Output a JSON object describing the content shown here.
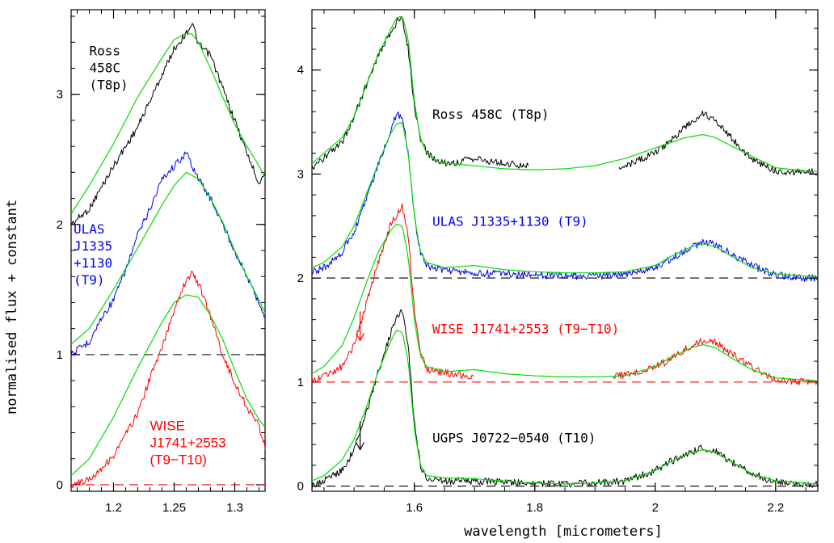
{
  "chart_data": [
    {
      "type": "line",
      "panel": "left",
      "ylabel": "normalised flux + constant",
      "xlim": [
        1.165,
        1.325
      ],
      "ylim": [
        -0.05,
        3.65
      ],
      "x_ticks": [
        1.2,
        1.25,
        1.3
      ],
      "x_tick_labels": [
        "1.2",
        "1.25",
        "1.3"
      ],
      "y_ticks": [
        0,
        1,
        2,
        3
      ],
      "y_tick_labels": [
        "0",
        "1",
        "2",
        "3"
      ],
      "baselines": [
        {
          "y": 1,
          "color": "#000000",
          "x_from": 1.165
        },
        {
          "y": 0,
          "color": "#ff0000",
          "x_from": 1.165
        }
      ],
      "annotations": [
        {
          "lines": [
            "Ross",
            "458C",
            "(T8p)"
          ],
          "x": 1.18,
          "y": 3.3,
          "color": "#000000",
          "style": "mono"
        },
        {
          "lines": [
            "ULAS",
            "J1335",
            "+1130",
            "(T9)"
          ],
          "x": 1.167,
          "y": 1.93,
          "color": "#0000ee",
          "style": "mono"
        },
        {
          "lines": [
            "WISE",
            "J1741+2553",
            "(T9−T10)"
          ],
          "x": 1.23,
          "y": 0.42,
          "color": "#ff0000",
          "style": "sans"
        }
      ],
      "series": [
        {
          "color": "#000000",
          "role": "spectrum",
          "x": [
            1.165,
            1.18,
            1.2,
            1.22,
            1.24,
            1.25,
            1.26,
            1.265,
            1.27,
            1.28,
            1.29,
            1.3,
            1.31,
            1.32,
            1.325
          ],
          "y": [
            2.0,
            2.12,
            2.45,
            2.75,
            3.15,
            3.35,
            3.47,
            3.55,
            3.38,
            3.3,
            3.05,
            2.8,
            2.55,
            2.32,
            2.4
          ]
        },
        {
          "color": "#00dd00",
          "role": "model",
          "x": [
            1.165,
            1.18,
            1.2,
            1.22,
            1.24,
            1.25,
            1.26,
            1.265,
            1.27,
            1.28,
            1.29,
            1.3,
            1.31,
            1.32,
            1.325
          ],
          "y": [
            2.08,
            2.3,
            2.62,
            2.98,
            3.28,
            3.42,
            3.47,
            3.46,
            3.4,
            3.2,
            2.98,
            2.77,
            2.6,
            2.45,
            2.36
          ]
        },
        {
          "color": "#0000ee",
          "role": "spectrum",
          "x": [
            1.165,
            1.18,
            1.19,
            1.2,
            1.21,
            1.22,
            1.23,
            1.24,
            1.25,
            1.26,
            1.27,
            1.28,
            1.29,
            1.3,
            1.31,
            1.32,
            1.325
          ],
          "y": [
            1.0,
            1.1,
            1.28,
            1.42,
            1.65,
            1.92,
            2.12,
            2.35,
            2.45,
            2.55,
            2.35,
            2.2,
            2.0,
            1.8,
            1.6,
            1.4,
            1.28
          ]
        },
        {
          "color": "#00dd00",
          "role": "model",
          "x": [
            1.165,
            1.18,
            1.2,
            1.22,
            1.24,
            1.25,
            1.26,
            1.27,
            1.28,
            1.29,
            1.3,
            1.31,
            1.32,
            1.325
          ],
          "y": [
            1.08,
            1.2,
            1.5,
            1.82,
            2.15,
            2.3,
            2.4,
            2.35,
            2.2,
            2.02,
            1.8,
            1.6,
            1.42,
            1.32
          ]
        },
        {
          "color": "#ff0000",
          "role": "spectrum",
          "x": [
            1.165,
            1.18,
            1.2,
            1.22,
            1.23,
            1.24,
            1.25,
            1.26,
            1.265,
            1.27,
            1.28,
            1.29,
            1.3,
            1.31,
            1.32,
            1.325
          ],
          "y": [
            0.0,
            0.04,
            0.22,
            0.55,
            0.82,
            1.05,
            1.35,
            1.58,
            1.62,
            1.55,
            1.3,
            1.0,
            0.78,
            0.6,
            0.45,
            0.3
          ]
        },
        {
          "color": "#00dd00",
          "role": "model",
          "x": [
            1.165,
            1.18,
            1.2,
            1.22,
            1.24,
            1.25,
            1.26,
            1.27,
            1.28,
            1.29,
            1.3,
            1.31,
            1.32,
            1.325
          ],
          "y": [
            0.07,
            0.2,
            0.52,
            0.9,
            1.25,
            1.4,
            1.46,
            1.44,
            1.3,
            1.12,
            0.88,
            0.66,
            0.5,
            0.44
          ]
        }
      ]
    },
    {
      "type": "line",
      "panel": "right",
      "xlabel": "wavelength [micrometers]",
      "xlim": [
        1.43,
        2.27
      ],
      "ylim": [
        -0.05,
        4.58
      ],
      "x_ticks": [
        1.6,
        1.8,
        2,
        2.2
      ],
      "x_tick_labels": [
        "1.6",
        "1.8",
        "2",
        "2.2"
      ],
      "y_ticks": [
        0,
        1,
        2,
        3,
        4
      ],
      "y_tick_labels": [
        "0",
        "1",
        "2",
        "3",
        "4"
      ],
      "baselines": [
        {
          "y": 2,
          "color": "#000000",
          "x_from": 1.43
        },
        {
          "y": 1,
          "color": "#ff0000",
          "x_from": 1.43
        },
        {
          "y": 0,
          "color": "#000000",
          "x_from": 1.43
        }
      ],
      "arrows": [
        {
          "x": 1.51,
          "y_top": 1.68,
          "y_bottom": 1.4,
          "color": "#ff0000"
        },
        {
          "x": 1.51,
          "y_top": 0.62,
          "y_bottom": 0.35,
          "color": "#000000"
        }
      ],
      "annotations": [
        {
          "lines": [
            "Ross 458C (T8p)"
          ],
          "x": 1.63,
          "y": 3.53,
          "color": "#000000",
          "style": "mono"
        },
        {
          "lines": [
            "ULAS J1335+1130 (T9)"
          ],
          "x": 1.63,
          "y": 2.5,
          "color": "#0000ee",
          "style": "mono"
        },
        {
          "lines": [
            "WISE J1741+2553 (T9−T10)"
          ],
          "x": 1.63,
          "y": 1.47,
          "color": "#ff0000",
          "style": "mono"
        },
        {
          "lines": [
            "UGPS J0722−0540 (T10)"
          ],
          "x": 1.63,
          "y": 0.42,
          "color": "#000000",
          "style": "mono"
        }
      ],
      "series": [
        {
          "color": "#000000",
          "role": "spectrum",
          "segments": [
            {
              "x": [
                1.43,
                1.45,
                1.48,
                1.5,
                1.52,
                1.54,
                1.56,
                1.57,
                1.58,
                1.59,
                1.6,
                1.61,
                1.62,
                1.64,
                1.66,
                1.7,
                1.75,
                1.79
              ],
              "y": [
                3.05,
                3.15,
                3.3,
                3.55,
                3.85,
                4.15,
                4.35,
                4.45,
                4.5,
                4.2,
                3.65,
                3.35,
                3.2,
                3.12,
                3.1,
                3.15,
                3.1,
                3.08
              ]
            },
            {
              "x": [
                1.94,
                1.96,
                1.98,
                2.0,
                2.02,
                2.04,
                2.06,
                2.08,
                2.1,
                2.12,
                2.14,
                2.16,
                2.18,
                2.2,
                2.22,
                2.25,
                2.27
              ],
              "y": [
                3.05,
                3.1,
                3.15,
                3.2,
                3.3,
                3.4,
                3.5,
                3.58,
                3.52,
                3.4,
                3.25,
                3.15,
                3.08,
                3.03,
                3.02,
                3.02,
                3.02
              ]
            }
          ]
        },
        {
          "color": "#00dd00",
          "role": "model",
          "x": [
            1.43,
            1.45,
            1.48,
            1.5,
            1.52,
            1.54,
            1.56,
            1.57,
            1.58,
            1.59,
            1.6,
            1.61,
            1.62,
            1.64,
            1.66,
            1.7,
            1.75,
            1.8,
            1.85,
            1.9,
            1.95,
            2.0,
            2.05,
            2.08,
            2.1,
            2.15,
            2.2,
            2.25,
            2.27
          ],
          "y": [
            3.1,
            3.2,
            3.35,
            3.55,
            3.85,
            4.15,
            4.38,
            4.5,
            4.52,
            4.3,
            3.7,
            3.35,
            3.2,
            3.12,
            3.1,
            3.08,
            3.05,
            3.04,
            3.05,
            3.08,
            3.15,
            3.25,
            3.35,
            3.38,
            3.35,
            3.2,
            3.06,
            3.03,
            3.02
          ]
        },
        {
          "color": "#0000ee",
          "role": "spectrum",
          "x": [
            1.43,
            1.45,
            1.48,
            1.5,
            1.52,
            1.54,
            1.56,
            1.57,
            1.58,
            1.59,
            1.6,
            1.61,
            1.62,
            1.65,
            1.7,
            1.75,
            1.8,
            1.85,
            1.9,
            1.95,
            2.0,
            2.03,
            2.06,
            2.08,
            2.1,
            2.13,
            2.16,
            2.2,
            2.25,
            2.27
          ],
          "y": [
            2.05,
            2.1,
            2.25,
            2.45,
            2.75,
            3.1,
            3.4,
            3.58,
            3.55,
            3.2,
            2.6,
            2.25,
            2.12,
            2.08,
            2.05,
            2.04,
            2.03,
            2.02,
            2.02,
            2.03,
            2.1,
            2.2,
            2.3,
            2.35,
            2.32,
            2.22,
            2.12,
            2.03,
            2.0,
            2.0
          ]
        },
        {
          "color": "#00dd00",
          "role": "model",
          "x": [
            1.43,
            1.45,
            1.48,
            1.5,
            1.52,
            1.54,
            1.56,
            1.57,
            1.58,
            1.59,
            1.6,
            1.61,
            1.62,
            1.65,
            1.7,
            1.75,
            1.8,
            1.85,
            1.9,
            1.95,
            2.0,
            2.03,
            2.06,
            2.08,
            2.1,
            2.13,
            2.16,
            2.2,
            2.25,
            2.27
          ],
          "y": [
            2.1,
            2.15,
            2.3,
            2.5,
            2.8,
            3.1,
            3.38,
            3.48,
            3.5,
            3.2,
            2.6,
            2.25,
            2.15,
            2.1,
            2.12,
            2.08,
            2.06,
            2.05,
            2.05,
            2.06,
            2.12,
            2.22,
            2.3,
            2.33,
            2.3,
            2.2,
            2.1,
            2.04,
            2.02,
            2.01
          ]
        },
        {
          "color": "#ff0000",
          "role": "spectrum",
          "segments": [
            {
              "x": [
                1.43,
                1.45,
                1.48,
                1.5,
                1.52,
                1.54,
                1.56,
                1.57,
                1.58,
                1.59,
                1.6,
                1.61,
                1.62,
                1.64,
                1.66,
                1.7
              ],
              "y": [
                1.02,
                1.05,
                1.15,
                1.35,
                1.75,
                2.15,
                2.5,
                2.6,
                2.7,
                2.4,
                1.7,
                1.3,
                1.12,
                1.1,
                1.08,
                1.05
              ]
            },
            {
              "x": [
                1.93,
                1.96,
                1.98,
                2.0,
                2.02,
                2.04,
                2.06,
                2.08,
                2.1,
                2.12,
                2.14,
                2.16,
                2.18,
                2.2,
                2.22,
                2.25,
                2.27
              ],
              "y": [
                1.05,
                1.08,
                1.12,
                1.15,
                1.2,
                1.28,
                1.35,
                1.4,
                1.38,
                1.3,
                1.22,
                1.15,
                1.08,
                1.03,
                1.01,
                1.0,
                1.0
              ]
            }
          ]
        },
        {
          "color": "#00dd00",
          "role": "model",
          "x": [
            1.43,
            1.45,
            1.48,
            1.5,
            1.52,
            1.54,
            1.56,
            1.57,
            1.58,
            1.59,
            1.6,
            1.61,
            1.62,
            1.65,
            1.7,
            1.75,
            1.8,
            1.85,
            1.9,
            1.95,
            2.0,
            2.03,
            2.06,
            2.08,
            2.1,
            2.13,
            2.16,
            2.2,
            2.25,
            2.27
          ],
          "y": [
            1.08,
            1.15,
            1.35,
            1.62,
            1.95,
            2.25,
            2.45,
            2.52,
            2.5,
            2.2,
            1.6,
            1.25,
            1.15,
            1.1,
            1.12,
            1.08,
            1.06,
            1.05,
            1.05,
            1.06,
            1.15,
            1.25,
            1.33,
            1.36,
            1.33,
            1.22,
            1.12,
            1.04,
            1.02,
            1.01
          ]
        },
        {
          "color": "#000000",
          "role": "spectrum",
          "x": [
            1.43,
            1.45,
            1.48,
            1.5,
            1.52,
            1.54,
            1.56,
            1.57,
            1.58,
            1.59,
            1.6,
            1.61,
            1.62,
            1.65,
            1.7,
            1.75,
            1.8,
            1.85,
            1.9,
            1.95,
            2.0,
            2.03,
            2.06,
            2.08,
            2.1,
            2.13,
            2.16,
            2.2,
            2.25,
            2.27
          ],
          "y": [
            0.0,
            0.05,
            0.15,
            0.35,
            0.7,
            1.1,
            1.45,
            1.62,
            1.7,
            1.35,
            0.6,
            0.2,
            0.08,
            0.05,
            0.05,
            0.04,
            0.03,
            0.02,
            0.03,
            0.05,
            0.15,
            0.25,
            0.33,
            0.37,
            0.33,
            0.22,
            0.12,
            0.04,
            0.02,
            0.02
          ]
        },
        {
          "color": "#00dd00",
          "role": "model",
          "x": [
            1.43,
            1.45,
            1.48,
            1.5,
            1.52,
            1.54,
            1.56,
            1.57,
            1.58,
            1.59,
            1.6,
            1.61,
            1.62,
            1.65,
            1.7,
            1.75,
            1.8,
            1.85,
            1.9,
            1.95,
            2.0,
            2.03,
            2.06,
            2.08,
            2.1,
            2.13,
            2.16,
            2.2,
            2.25,
            2.27
          ],
          "y": [
            0.05,
            0.1,
            0.25,
            0.45,
            0.75,
            1.1,
            1.38,
            1.5,
            1.48,
            1.2,
            0.55,
            0.2,
            0.1,
            0.08,
            0.07,
            0.05,
            0.03,
            0.02,
            0.03,
            0.05,
            0.15,
            0.25,
            0.32,
            0.35,
            0.32,
            0.22,
            0.12,
            0.05,
            0.03,
            0.02
          ]
        }
      ]
    }
  ]
}
